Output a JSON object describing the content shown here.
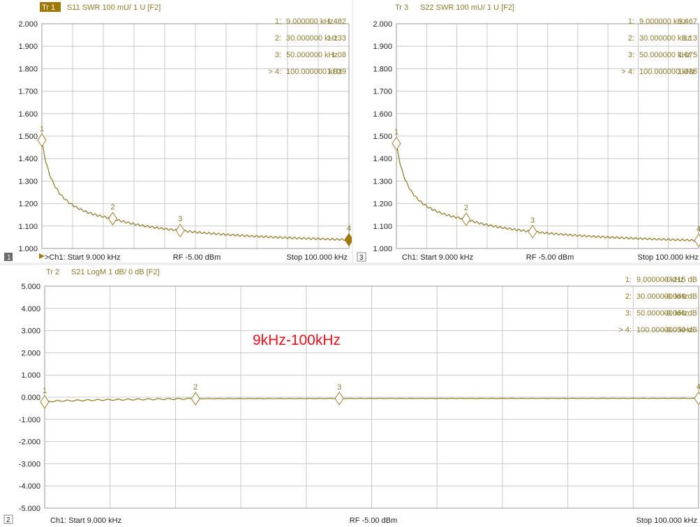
{
  "colors": {
    "trace": "#8b7520",
    "marker": "#a08030",
    "grid": "#c8c8c8",
    "accent": "#a07800"
  },
  "annotation": "9kHz-100kHz",
  "chart_data": [
    {
      "id": "tr1",
      "type": "line",
      "channel_box": "1",
      "trace_badge": "Tr 1",
      "title": "S11 SWR 100 mU/ 1 U [F2]",
      "yticks": [
        "2.000",
        "1.900",
        "1.800",
        "1.700",
        "1.600",
        "1.500",
        "1.400",
        "1.300",
        "1.200",
        "1.100",
        "1.000"
      ],
      "ylim": [
        1.0,
        2.0
      ],
      "xlim": [
        9,
        100
      ],
      "x_unit": "kHz",
      "grid": true,
      "markers": [
        {
          "label": "1",
          "idx": "1:",
          "freq": "9.000000 kHz",
          "x": 9,
          "value": "1.482",
          "y": 1.482
        },
        {
          "label": "2",
          "idx": "2:",
          "freq": "30.000000 kHz",
          "x": 30,
          "value": "1.133",
          "y": 1.133
        },
        {
          "label": "3",
          "idx": "3:",
          "freq": "50.000000 kHz",
          "x": 50,
          "value": "1.08",
          "y": 1.08
        },
        {
          "label": "4",
          "idx": "> 4:",
          "freq": "100.000000 kHz",
          "x": 100,
          "value": "1.039",
          "y": 1.039
        }
      ],
      "footer": {
        "start": ">Ch1: Start 9.000 kHz",
        "rf": "RF -5.00 dBm",
        "stop": "Stop 100.000 kHz"
      }
    },
    {
      "id": "tr3",
      "type": "line",
      "channel_box": "3",
      "trace_badge": "Tr 3",
      "title": "S22 SWR 100 mU/ 1 U [F2]",
      "yticks": [
        "2.000",
        "1.900",
        "1.800",
        "1.700",
        "1.600",
        "1.500",
        "1.400",
        "1.300",
        "1.200",
        "1.100",
        "1.000"
      ],
      "ylim": [
        1.0,
        2.0
      ],
      "xlim": [
        9,
        100
      ],
      "x_unit": "kHz",
      "grid": true,
      "markers": [
        {
          "label": "1",
          "idx": "1:",
          "freq": "9.000000 kHz",
          "x": 9,
          "value": "1.467",
          "y": 1.467
        },
        {
          "label": "2",
          "idx": "2:",
          "freq": "30.000000 kHz",
          "x": 30,
          "value": "1.13",
          "y": 1.13
        },
        {
          "label": "3",
          "idx": "3:",
          "freq": "50.000000 kHz",
          "x": 50,
          "value": "1.075",
          "y": 1.075
        },
        {
          "label": "4",
          "idx": "> 4:",
          "freq": "100.000000 kHz",
          "x": 100,
          "value": "1.036",
          "y": 1.036
        }
      ],
      "footer": {
        "start": "Ch1: Start 9.000 kHz",
        "rf": "RF -5.00 dBm",
        "stop": "Stop 100.000 kHz"
      }
    },
    {
      "id": "tr2",
      "type": "line",
      "channel_box": "2",
      "trace_badge": "Tr 2",
      "title": "S21 LogM 1 dB/ 0 dB [F2]",
      "yticks": [
        "5.000",
        "4.000",
        "3.000",
        "2.000",
        "1.000",
        "0.000",
        "-1.000",
        "-2.000",
        "-3.000",
        "-4.000",
        "-5.000"
      ],
      "ylim": [
        -5.0,
        5.0
      ],
      "xlim": [
        9,
        100
      ],
      "x_unit": "kHz",
      "grid": true,
      "markers": [
        {
          "label": "1",
          "idx": "1:",
          "freq": "9.000000 kHz",
          "x": 9,
          "value": "-0.215 dB",
          "y": -0.215
        },
        {
          "label": "2",
          "idx": "2:",
          "freq": "30.000000 kHz",
          "x": 30,
          "value": "-0.069 dB",
          "y": -0.069
        },
        {
          "label": "3",
          "idx": "3:",
          "freq": "50.000000 kHz",
          "x": 50,
          "value": "-0.060 dB",
          "y": -0.06
        },
        {
          "label": "4",
          "idx": "> 4:",
          "freq": "100.000000 kHz",
          "x": 100,
          "value": "-0.050 dB",
          "y": -0.05
        }
      ],
      "footer": {
        "start": "Ch1: Start 9.000 kHz",
        "rf": "RF -5.00 dBm",
        "stop": "Stop 100.000 kHz"
      }
    }
  ]
}
